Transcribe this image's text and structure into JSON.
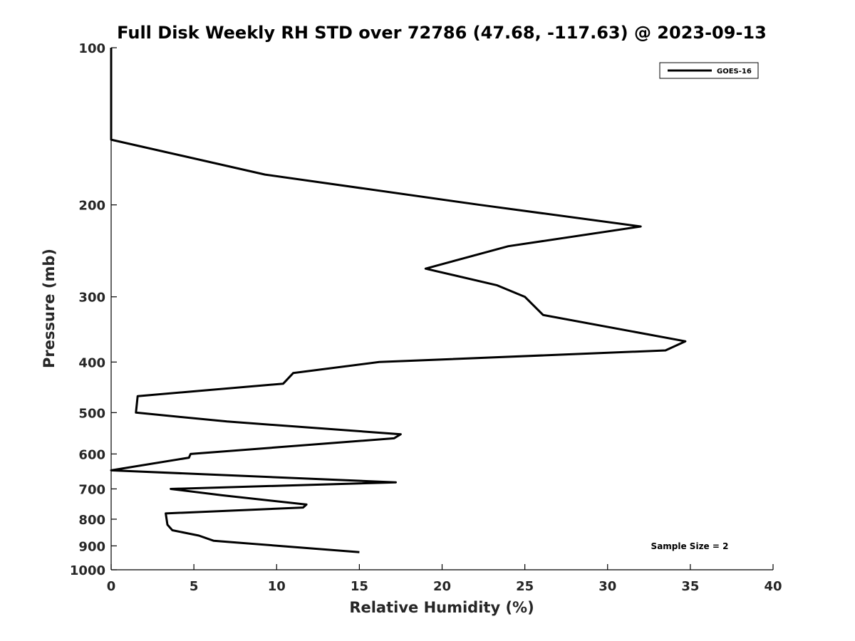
{
  "chart_data": {
    "type": "line",
    "title": "Full Disk Weekly RH STD over 72786 (47.68, -117.63) @ 2023-09-13",
    "xlabel": "Relative Humidity (%)",
    "ylabel": "Pressure (mb)",
    "xlim": [
      0,
      40
    ],
    "ylim": [
      100,
      1000
    ],
    "y_scale": "log",
    "y_reversed": true,
    "x_ticks": [
      0,
      5,
      10,
      15,
      20,
      25,
      30,
      35,
      40
    ],
    "x_tick_labels": [
      "0",
      "5",
      "10",
      "15",
      "20",
      "25",
      "30",
      "35",
      "40"
    ],
    "y_ticks": [
      100,
      200,
      300,
      400,
      500,
      600,
      700,
      800,
      900,
      1000
    ],
    "y_tick_labels": [
      "100",
      "200",
      "300",
      "400",
      "500",
      "600",
      "700",
      "800",
      "900",
      "1000"
    ],
    "grid": false,
    "legend_position": "top-right",
    "series": [
      {
        "name": "GOES-16",
        "color": "#000000",
        "points": [
          [
            0.0,
            100
          ],
          [
            0.0,
            150
          ],
          [
            9.3,
            175
          ],
          [
            22.3,
            200
          ],
          [
            32.0,
            220
          ],
          [
            24.0,
            240
          ],
          [
            19.0,
            265
          ],
          [
            23.3,
            285
          ],
          [
            25.0,
            300
          ],
          [
            26.1,
            325
          ],
          [
            34.7,
            365
          ],
          [
            33.5,
            380
          ],
          [
            16.2,
            400
          ],
          [
            11.0,
            420
          ],
          [
            10.4,
            440
          ],
          [
            1.6,
            465
          ],
          [
            1.5,
            500
          ],
          [
            7.0,
            520
          ],
          [
            17.5,
            550
          ],
          [
            17.1,
            560
          ],
          [
            4.8,
            600
          ],
          [
            4.7,
            610
          ],
          [
            0.0,
            645
          ],
          [
            17.2,
            680
          ],
          [
            3.6,
            700
          ],
          [
            6.7,
            720
          ],
          [
            11.8,
            750
          ],
          [
            11.6,
            760
          ],
          [
            3.3,
            780
          ],
          [
            3.4,
            820
          ],
          [
            3.7,
            840
          ],
          [
            5.3,
            860
          ],
          [
            6.2,
            880
          ],
          [
            15.0,
            925
          ]
        ]
      }
    ],
    "annotations": [
      "Sample Size = 2"
    ]
  }
}
